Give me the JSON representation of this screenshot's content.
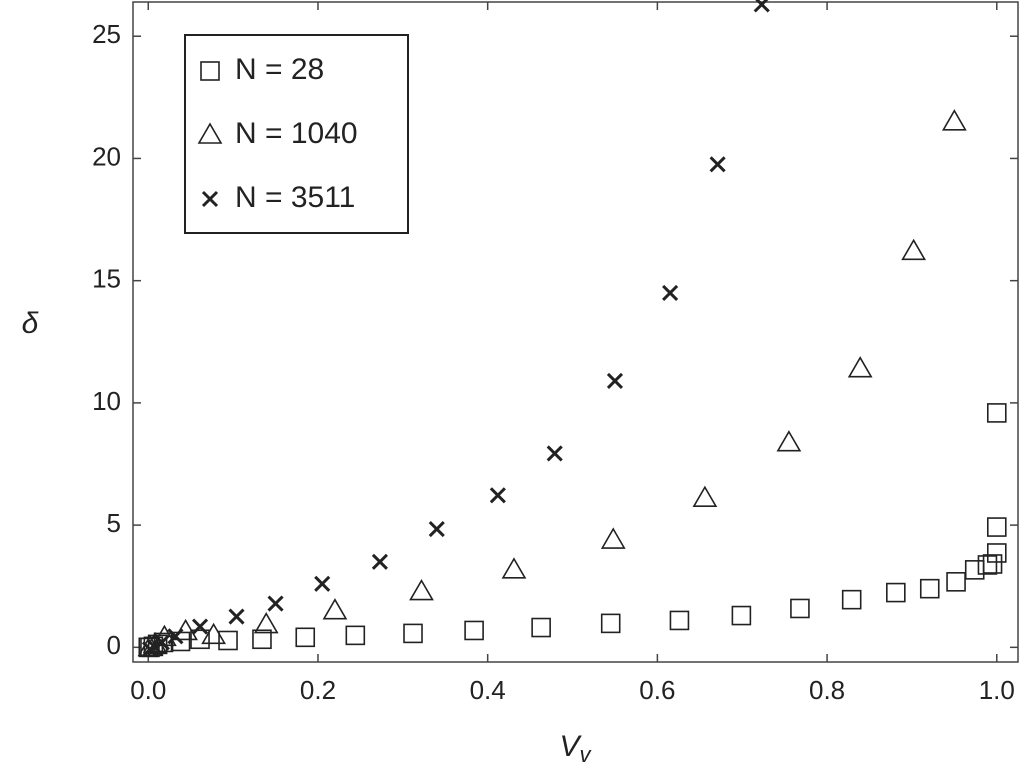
{
  "chart_data": {
    "type": "scatter",
    "x_label": "V",
    "x_label_sub": "v",
    "y_label": "δ",
    "xlim": [
      -0.018,
      1.025
    ],
    "ylim": [
      -0.6,
      26.4
    ],
    "xticks": [
      {
        "value": 0,
        "label": "0.0"
      },
      0.2,
      0.4,
      0.6,
      0.8,
      {
        "value": 1,
        "label": "1.0"
      }
    ],
    "yticks": [
      0,
      5,
      10,
      15,
      20,
      25
    ],
    "legend": "upper left",
    "series": [
      {
        "name": "N = 28",
        "marker": "square",
        "color": "#222",
        "x": [
          0.0,
          0.002,
          0.006,
          0.011,
          0.018,
          0.038,
          0.061,
          0.094,
          0.134,
          0.185,
          0.244,
          0.312,
          0.384,
          0.463,
          0.545,
          0.626,
          0.699,
          0.768,
          0.829,
          0.881,
          0.921,
          0.952,
          0.974,
          0.989,
          0.995,
          1.0,
          1.0,
          1.0
        ],
        "values": [
          0,
          0,
          0.04,
          0.12,
          0.2,
          0.24,
          0.33,
          0.28,
          0.33,
          0.41,
          0.49,
          0.57,
          0.69,
          0.81,
          0.98,
          1.1,
          1.3,
          1.59,
          1.95,
          2.24,
          2.4,
          2.68,
          3.17,
          3.37,
          3.41,
          3.86,
          4.92,
          9.59
        ]
      },
      {
        "name": "N = 1040",
        "marker": "triangle",
        "color": "#222",
        "x": [
          0.002,
          0.008,
          0.019,
          0.044,
          0.077,
          0.139,
          0.22,
          0.322,
          0.431,
          0.548,
          0.656,
          0.755,
          0.839,
          0.902,
          0.95
        ],
        "values": [
          0,
          0.12,
          0.41,
          0.65,
          0.49,
          0.93,
          1.5,
          2.28,
          3.17,
          4.39,
          6.1,
          8.37,
          11.4,
          16.2,
          21.5
        ]
      },
      {
        "name": "N = 3511",
        "marker": "cross",
        "color": "#222",
        "x": [
          0.002,
          0.008,
          0.016,
          0.032,
          0.061,
          0.104,
          0.15,
          0.205,
          0.273,
          0.34,
          0.412,
          0.479,
          0.55,
          0.615,
          0.671,
          0.723
        ],
        "values": [
          -0.08,
          0,
          0.2,
          0.45,
          0.85,
          1.26,
          1.79,
          2.6,
          3.5,
          4.84,
          6.22,
          7.93,
          10.9,
          14.5,
          19.76,
          26.3
        ]
      }
    ]
  }
}
